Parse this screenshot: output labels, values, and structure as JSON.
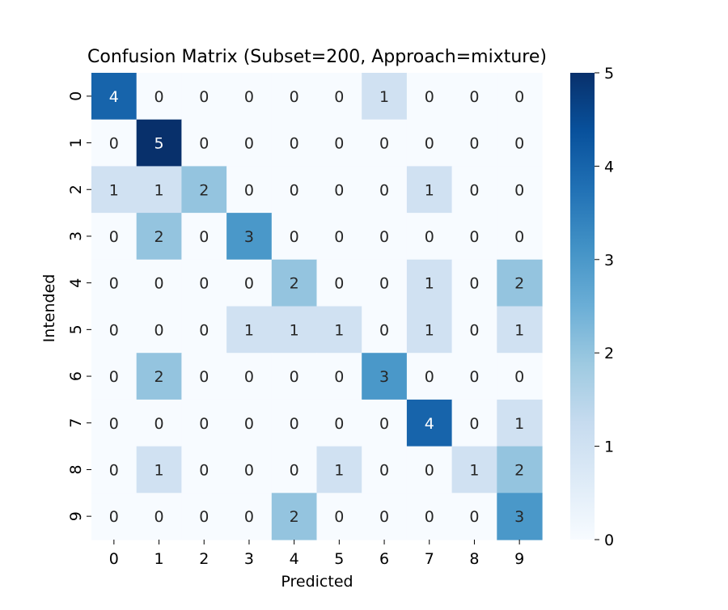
{
  "chart_data": {
    "type": "heatmap",
    "title": "Confusion Matrix (Subset=200, Approach=mixture)",
    "xlabel": "Predicted",
    "ylabel": "Intended",
    "x_categories": [
      "0",
      "1",
      "2",
      "3",
      "4",
      "5",
      "6",
      "7",
      "8",
      "9"
    ],
    "y_categories": [
      "0",
      "1",
      "2",
      "3",
      "4",
      "5",
      "6",
      "7",
      "8",
      "9"
    ],
    "values": [
      [
        4,
        0,
        0,
        0,
        0,
        0,
        1,
        0,
        0,
        0
      ],
      [
        0,
        5,
        0,
        0,
        0,
        0,
        0,
        0,
        0,
        0
      ],
      [
        1,
        1,
        2,
        0,
        0,
        0,
        0,
        1,
        0,
        0
      ],
      [
        0,
        2,
        0,
        3,
        0,
        0,
        0,
        0,
        0,
        0
      ],
      [
        0,
        0,
        0,
        0,
        2,
        0,
        0,
        1,
        0,
        2
      ],
      [
        0,
        0,
        0,
        1,
        1,
        1,
        0,
        1,
        0,
        1
      ],
      [
        0,
        2,
        0,
        0,
        0,
        0,
        3,
        0,
        0,
        0
      ],
      [
        0,
        0,
        0,
        0,
        0,
        0,
        0,
        4,
        0,
        1
      ],
      [
        0,
        1,
        0,
        0,
        0,
        1,
        0,
        0,
        1,
        2
      ],
      [
        0,
        0,
        0,
        0,
        2,
        0,
        0,
        0,
        0,
        3
      ]
    ],
    "colormap": "Blues",
    "vmin": 0,
    "vmax": 5,
    "colorbar_ticks": [
      "0",
      "1",
      "2",
      "3",
      "4",
      "5"
    ],
    "annotations": true,
    "grid": false
  }
}
